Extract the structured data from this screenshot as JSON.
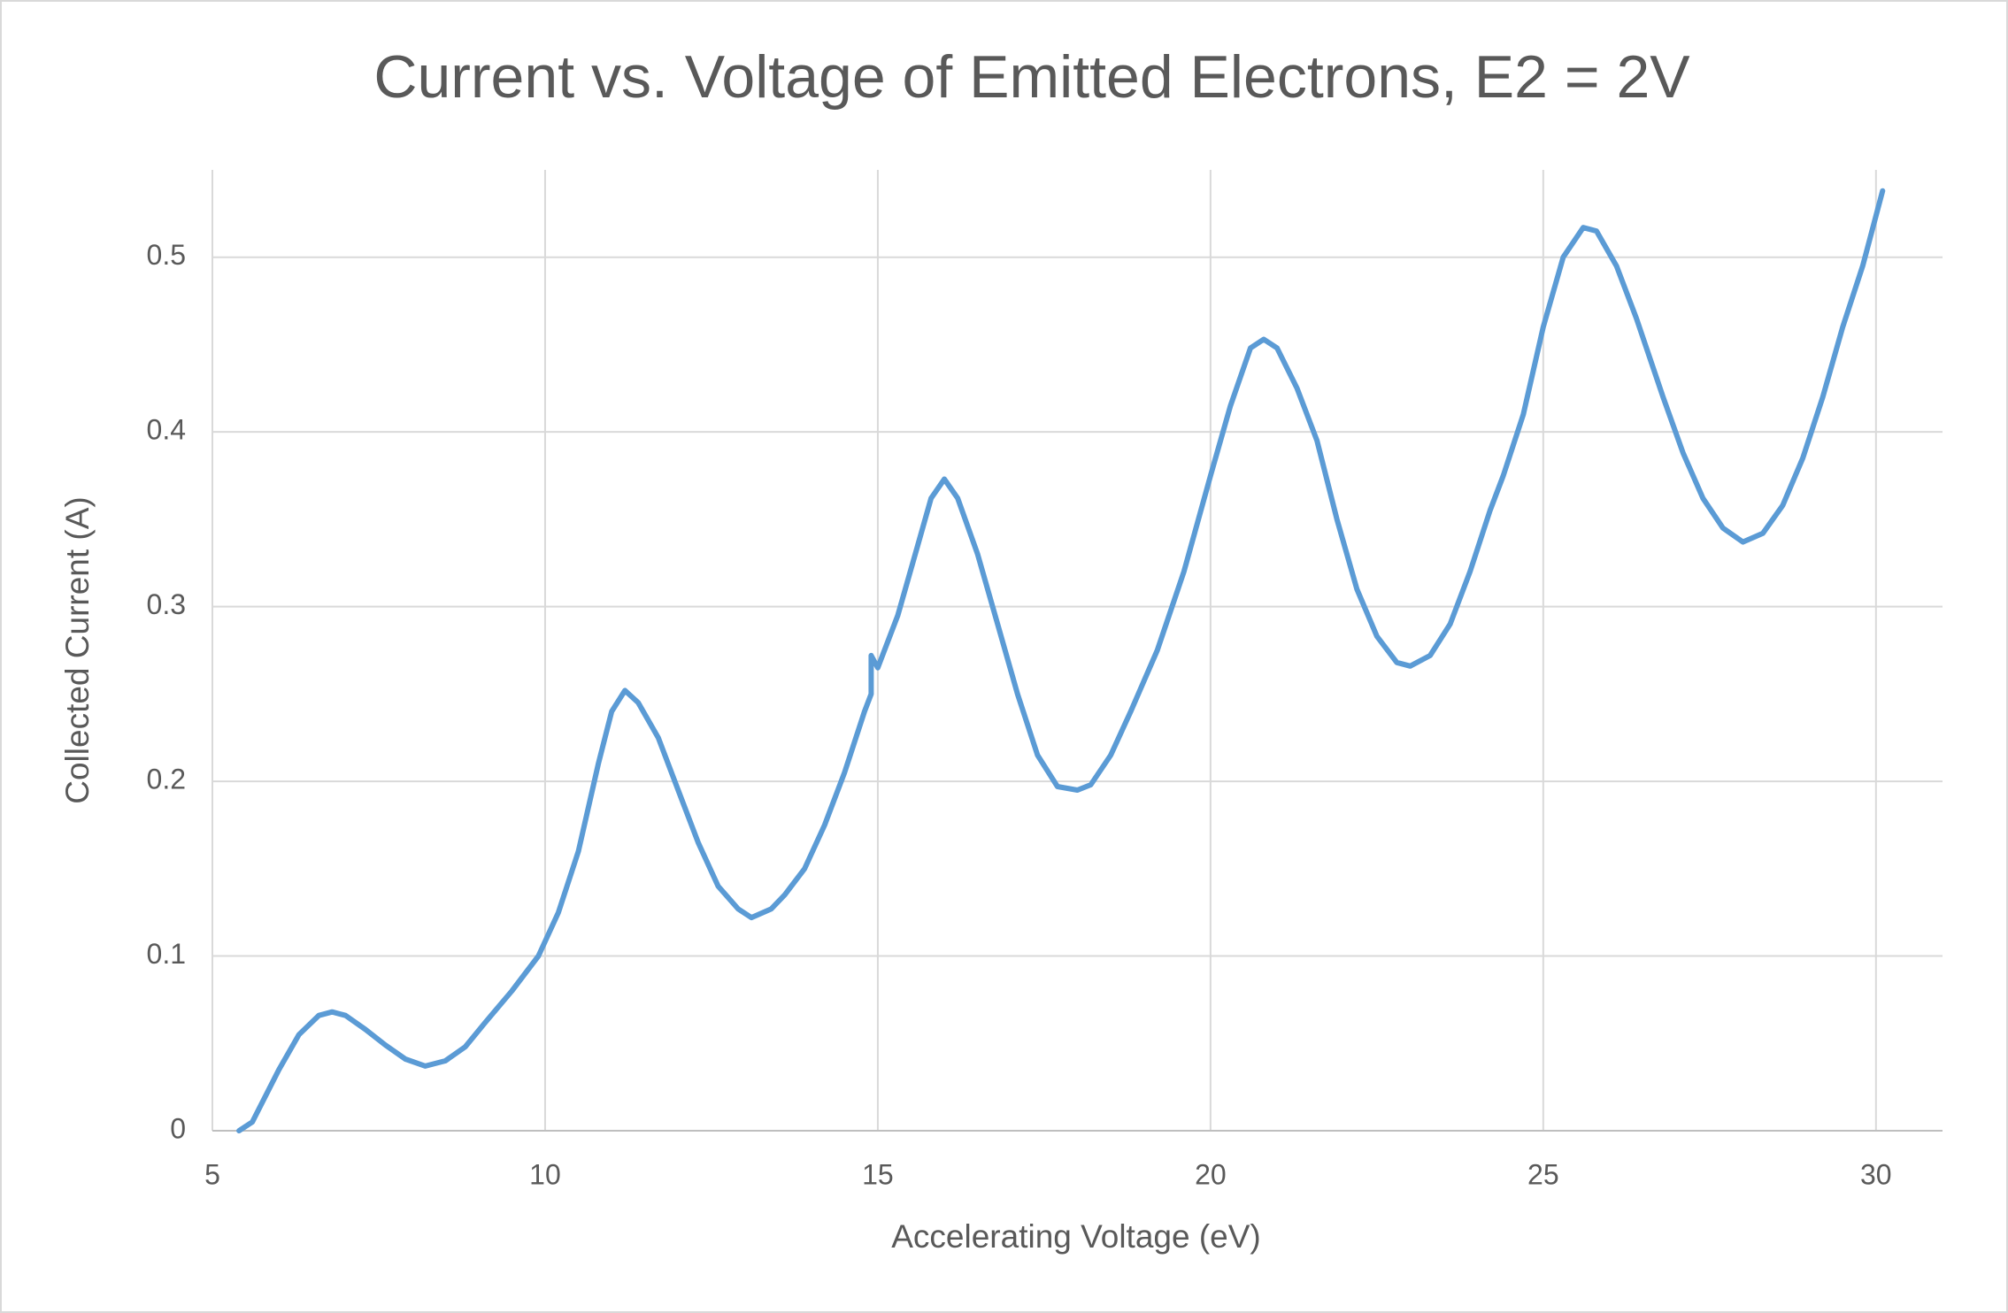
{
  "chart_data": {
    "type": "line",
    "title": "Current vs. Voltage of Emitted Electrons, E2 = 2V",
    "x_label": "Accelerating Voltage (eV)",
    "y_label": "Collected Current (A)",
    "color": "#5b9bd5",
    "grid": true,
    "xlim": [
      5,
      31
    ],
    "xticks": [
      5,
      10,
      15,
      20,
      25,
      30
    ],
    "ylim": [
      0,
      0.55
    ],
    "yticks": [
      0,
      0.1,
      0.2,
      0.3,
      0.4,
      0.5
    ],
    "x": [
      5.4,
      5.6,
      6.0,
      6.3,
      6.6,
      6.8,
      7.0,
      7.3,
      7.6,
      7.9,
      8.2,
      8.5,
      8.8,
      9.1,
      9.5,
      9.9,
      10.2,
      10.5,
      10.8,
      11.0,
      11.2,
      11.4,
      11.7,
      12.0,
      12.3,
      12.6,
      12.9,
      13.1,
      13.4,
      13.6,
      13.9,
      14.2,
      14.5,
      14.8,
      14.9,
      14.9,
      15.0,
      15.3,
      15.6,
      15.8,
      16.0,
      16.2,
      16.5,
      16.8,
      17.1,
      17.4,
      17.7,
      18.0,
      18.2,
      18.5,
      18.8,
      19.2,
      19.6,
      20.0,
      20.3,
      20.6,
      20.8,
      21.0,
      21.3,
      21.6,
      21.9,
      22.2,
      22.5,
      22.8,
      23.0,
      23.3,
      23.6,
      23.9,
      24.2,
      24.4,
      24.7,
      25.0,
      25.3,
      25.6,
      25.8,
      26.1,
      26.4,
      26.8,
      27.1,
      27.4,
      27.7,
      28.0,
      28.3,
      28.6,
      28.9,
      29.2,
      29.5,
      29.8,
      30.1
    ],
    "values": [
      0,
      0.005,
      0.035,
      0.055,
      0.066,
      0.068,
      0.066,
      0.058,
      0.049,
      0.041,
      0.037,
      0.04,
      0.048,
      0.062,
      0.08,
      0.1,
      0.125,
      0.16,
      0.21,
      0.24,
      0.252,
      0.245,
      0.225,
      0.195,
      0.165,
      0.14,
      0.127,
      0.122,
      0.127,
      0.135,
      0.15,
      0.175,
      0.205,
      0.24,
      0.25,
      0.272,
      0.265,
      0.295,
      0.335,
      0.362,
      0.373,
      0.362,
      0.33,
      0.29,
      0.25,
      0.215,
      0.197,
      0.195,
      0.198,
      0.215,
      0.24,
      0.275,
      0.32,
      0.375,
      0.415,
      0.448,
      0.453,
      0.448,
      0.425,
      0.395,
      0.35,
      0.31,
      0.283,
      0.268,
      0.266,
      0.272,
      0.29,
      0.32,
      0.355,
      0.375,
      0.41,
      0.46,
      0.5,
      0.517,
      0.515,
      0.495,
      0.465,
      0.42,
      0.388,
      0.362,
      0.345,
      0.337,
      0.342,
      0.358,
      0.385,
      0.42,
      0.46,
      0.495,
      0.538
    ]
  }
}
